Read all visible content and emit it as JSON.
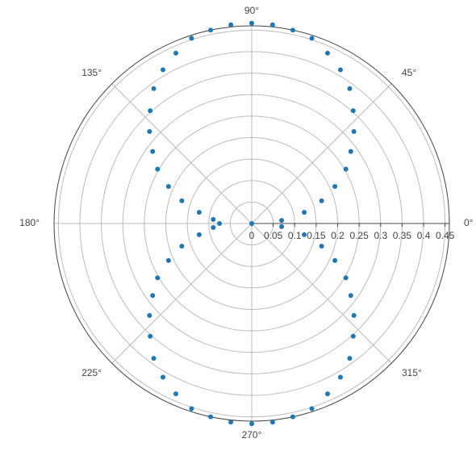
{
  "chart_data": {
    "type": "polar-scatter",
    "color": "#1f77b4",
    "theta": [
      0,
      6,
      12,
      18,
      24,
      30,
      36,
      42,
      48,
      54,
      60,
      66,
      72,
      78,
      84,
      90,
      96,
      102,
      108,
      114,
      120,
      126,
      132,
      138,
      144,
      150,
      156,
      162,
      168,
      174,
      180,
      186,
      192,
      198,
      204,
      210,
      216,
      222,
      228,
      234,
      240,
      246,
      252,
      258,
      264,
      270,
      276,
      282,
      288,
      294,
      300,
      306,
      312,
      318,
      324,
      330,
      336,
      342,
      348,
      354
    ],
    "r": [
      0,
      0.07,
      0.125,
      0.171,
      0.212,
      0.253,
      0.285,
      0.32,
      0.353,
      0.388,
      0.413,
      0.434,
      0.453,
      0.46,
      0.465,
      0.466,
      0.465,
      0.46,
      0.453,
      0.434,
      0.413,
      0.388,
      0.353,
      0.32,
      0.285,
      0.253,
      0.212,
      0.171,
      0.125,
      0.09,
      0.075,
      0.09,
      0.125,
      0.171,
      0.212,
      0.253,
      0.285,
      0.32,
      0.353,
      0.388,
      0.413,
      0.434,
      0.453,
      0.46,
      0.465,
      0.466,
      0.465,
      0.46,
      0.453,
      0.434,
      0.413,
      0.388,
      0.353,
      0.32,
      0.285,
      0.253,
      0.212,
      0.171,
      0.125,
      0.07
    ],
    "rlim": [
      0,
      0.46
    ],
    "rticks": [
      0,
      0.05,
      0.1,
      0.15,
      0.2,
      0.25,
      0.3,
      0.35,
      0.4,
      0.45
    ],
    "thetaticks": [
      {
        "value": 0,
        "label": "0°"
      },
      {
        "value": 45,
        "label": "45°"
      },
      {
        "value": 90,
        "label": "90°"
      },
      {
        "value": 135,
        "label": "135°"
      },
      {
        "value": 180,
        "label": "180°"
      },
      {
        "value": 225,
        "label": "225°"
      },
      {
        "value": 270,
        "label": "270°"
      },
      {
        "value": 315,
        "label": "315°"
      }
    ],
    "grid": true
  }
}
